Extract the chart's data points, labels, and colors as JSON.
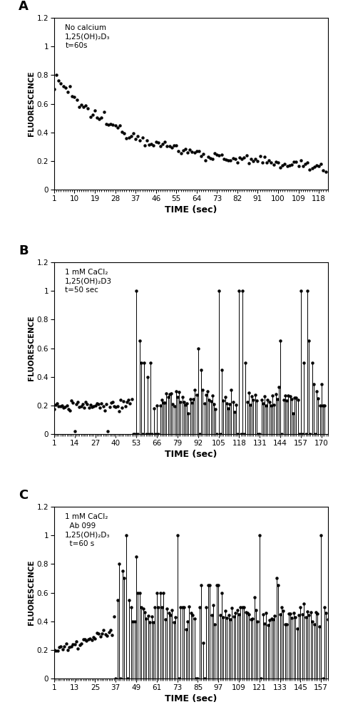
{
  "panel_A": {
    "label": "A",
    "annotation": "No calcium\n1,25(OH)₂D₃\nt=60s",
    "ylabel": "FLUORESCENCE",
    "xlabel": "TIME (sec)",
    "xlim": [
      1,
      122
    ],
    "ylim": [
      0,
      1.2
    ],
    "yticks": [
      0,
      0.2,
      0.4,
      0.6,
      0.8,
      1.0,
      1.2
    ],
    "ytick_labels": [
      "0",
      "0.2",
      "0.4",
      "0.6",
      "0.8",
      "1",
      "1.2"
    ],
    "xticks": [
      1,
      10,
      19,
      28,
      37,
      46,
      55,
      64,
      73,
      82,
      91,
      100,
      109,
      118
    ]
  },
  "panel_B": {
    "label": "B",
    "annotation": "1 mM CaCl₂\n1,25(OH)₂D3\nt=50 sec",
    "ylabel": "FLUORESCENCE",
    "xlabel": "TIME (sec)",
    "xlim": [
      1,
      174
    ],
    "ylim": [
      0,
      1.2
    ],
    "yticks": [
      0,
      0.2,
      0.4,
      0.6,
      0.8,
      1.0,
      1.2
    ],
    "ytick_labels": [
      "0",
      "0.2",
      "0.4",
      "0.6",
      "0.8",
      "1",
      "1.2"
    ],
    "xticks": [
      1,
      14,
      27,
      40,
      53,
      66,
      79,
      92,
      105,
      118,
      131,
      144,
      157,
      170
    ]
  },
  "panel_C": {
    "label": "C",
    "annotation": "1 mM CaCl₂\n  Ab 099\n1,25(OH)₂D₃\n  t=60 s",
    "ylabel": "FLUORESCENCE",
    "xlabel": "TIME (sec)",
    "xlim": [
      1,
      161
    ],
    "ylim": [
      0,
      1.2
    ],
    "yticks": [
      0,
      0.2,
      0.4,
      0.6,
      0.8,
      1.0,
      1.2
    ],
    "ytick_labels": [
      "0",
      "0.2",
      "0.4",
      "0.6",
      "0.8",
      "1",
      "1.2"
    ],
    "xticks": [
      1,
      13,
      25,
      37,
      49,
      61,
      73,
      85,
      97,
      109,
      121,
      133,
      145,
      157
    ]
  },
  "fig_width": 4.74,
  "fig_height": 9.92,
  "dpi": 100
}
